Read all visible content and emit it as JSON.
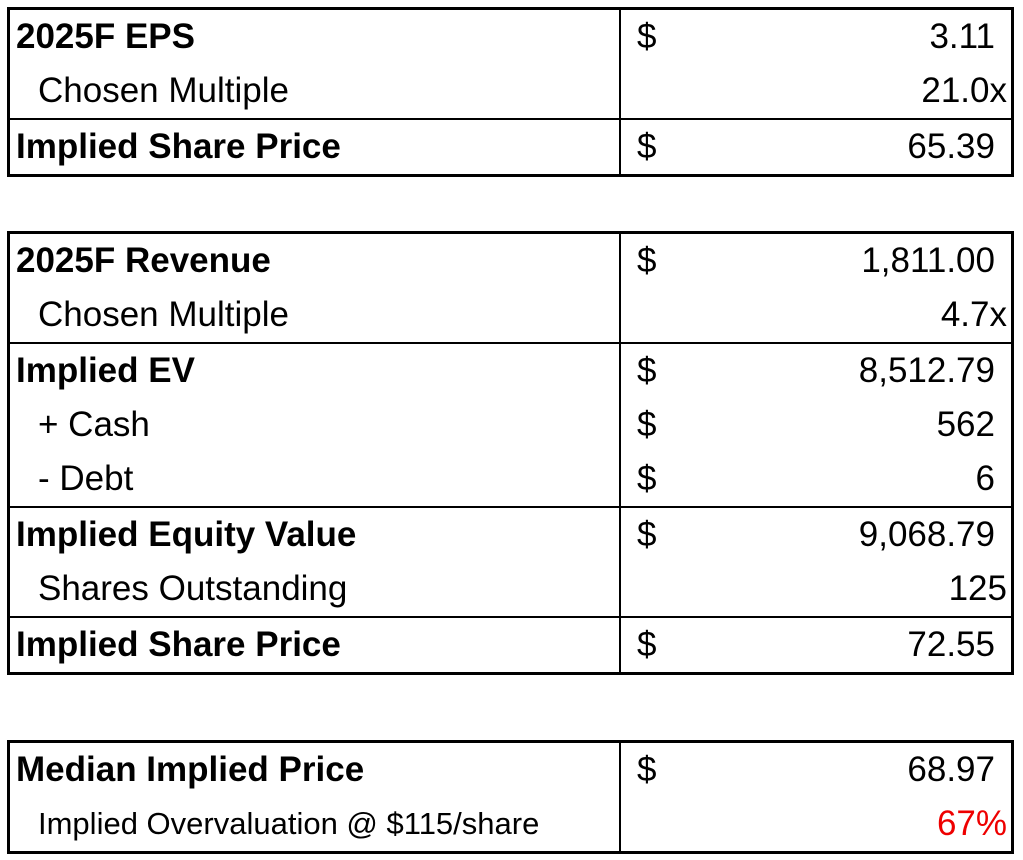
{
  "eps_table": {
    "rows": [
      {
        "label": "2025F EPS",
        "dollar": "$",
        "value": "3.11"
      },
      {
        "label": "Chosen Multiple",
        "dollar": "",
        "value": "21.0x"
      },
      {
        "label": "Implied Share Price",
        "dollar": "$",
        "value": "65.39"
      }
    ]
  },
  "revenue_table": {
    "rows": [
      {
        "label": "2025F Revenue",
        "dollar": "$",
        "value": "1,811.00"
      },
      {
        "label": "Chosen Multiple",
        "dollar": "",
        "value": "4.7x"
      },
      {
        "label": "Implied EV",
        "dollar": "$",
        "value": "8,512.79"
      },
      {
        "label": "+ Cash",
        "dollar": "$",
        "value": "562"
      },
      {
        "label": "- Debt",
        "dollar": "$",
        "value": "6"
      },
      {
        "label": "Implied Equity Value",
        "dollar": "$",
        "value": "9,068.79"
      },
      {
        "label": "Shares Outstanding",
        "dollar": "",
        "value": "125"
      },
      {
        "label": "Implied Share Price",
        "dollar": "$",
        "value": "72.55"
      }
    ]
  },
  "summary_table": {
    "rows": [
      {
        "label": "Median Implied Price",
        "dollar": "$",
        "value": "68.97"
      },
      {
        "label": "Implied Overvaluation @ $115/share",
        "dollar": "",
        "value": "67%"
      }
    ]
  },
  "colors": {
    "overvaluation": "#ee0000"
  }
}
